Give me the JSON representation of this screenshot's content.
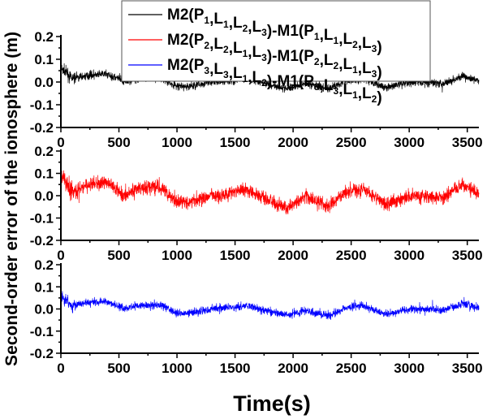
{
  "chart_data": {
    "type": "line",
    "xlabel": "Time(s)",
    "ylabel": "Second-order error of the ionosphere (m)",
    "xlim": [
      0,
      3600
    ],
    "ylim": [
      -0.2,
      0.2
    ],
    "xticks": [
      "0",
      "500",
      "1000",
      "1500",
      "2000",
      "2500",
      "3000",
      "3500"
    ],
    "yticks": [
      "-0.2",
      "-0.1",
      "0.0",
      "0.1",
      "0.2"
    ],
    "grid": false,
    "legend_position": "top",
    "panels": [
      {
        "series": [
          {
            "name": "M2(P1,L1,L2,L3)-M1(P1,L1,L2,L3)",
            "color": "#000000",
            "noise": 0.012,
            "trend_x": [
              0,
              100,
              250,
              400,
              550,
              650,
              850,
              1000,
              1100,
              1300,
              1450,
              1600,
              1750,
              1950,
              2100,
              2300,
              2450,
              2600,
              2800,
              3000,
              3300,
              3450,
              3600
            ],
            "trend_y": [
              0.06,
              0.015,
              0.03,
              0.035,
              0.0,
              0.015,
              0.02,
              -0.02,
              -0.02,
              0.0,
              0.005,
              0.015,
              -0.005,
              -0.03,
              -0.005,
              -0.03,
              0.005,
              0.015,
              -0.025,
              0.0,
              -0.005,
              0.025,
              0.005
            ]
          }
        ]
      },
      {
        "series": [
          {
            "name": "M2(P2,L2,L1,L3)-M1(P2,L2,L1,L3)",
            "color": "#ff0000",
            "noise": 0.022,
            "trend_x": [
              0,
              100,
              250,
              400,
              550,
              650,
              850,
              1000,
              1100,
              1300,
              1450,
              1600,
              1750,
              1950,
              2100,
              2300,
              2450,
              2600,
              2800,
              3000,
              3300,
              3450,
              3600
            ],
            "trend_y": [
              0.1,
              0.02,
              0.05,
              0.06,
              0.0,
              0.03,
              0.04,
              -0.03,
              -0.03,
              0.0,
              0.01,
              0.03,
              -0.01,
              -0.06,
              0.0,
              -0.05,
              0.02,
              0.03,
              -0.04,
              0.0,
              -0.01,
              0.05,
              0.01
            ]
          }
        ]
      },
      {
        "series": [
          {
            "name": "M2(P3,L3,L1,L2)-M1(P3,L3,L1,L2)",
            "color": "#0000ff",
            "noise": 0.012,
            "trend_x": [
              0,
              100,
              250,
              400,
              550,
              650,
              850,
              1000,
              1100,
              1300,
              1450,
              1600,
              1750,
              1950,
              2100,
              2300,
              2450,
              2600,
              2800,
              3000,
              3300,
              3450,
              3600
            ],
            "trend_y": [
              0.06,
              0.015,
              0.03,
              0.035,
              0.0,
              0.015,
              0.02,
              -0.02,
              -0.02,
              0.0,
              0.005,
              0.015,
              -0.005,
              -0.03,
              -0.005,
              -0.03,
              0.005,
              0.015,
              -0.025,
              0.0,
              -0.005,
              0.025,
              0.005
            ]
          }
        ]
      }
    ]
  }
}
